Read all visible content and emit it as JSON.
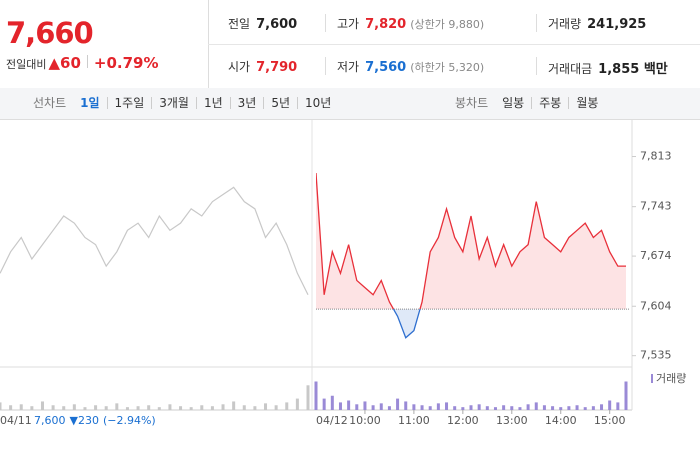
{
  "quote": {
    "price": "7,660",
    "change_label": "전일대비",
    "change": "▲60",
    "change_pct": "+0.79%"
  },
  "stats": [
    {
      "label": "전일",
      "value": "7,600",
      "color": "#222222"
    },
    {
      "label": "고가",
      "value": "7,820",
      "note": "(상한가 9,880)",
      "color": "#e3242b"
    },
    {
      "label": "거래량",
      "value": "241,925",
      "color": "#222222"
    },
    {
      "label": "시가",
      "value": "7,790",
      "color": "#e3242b"
    },
    {
      "label": "저가",
      "value": "7,560",
      "note": "(하한가 5,320)",
      "color": "#1a6fd1"
    },
    {
      "label": "거래대금",
      "value": "1,855 백만",
      "color": "#222222"
    }
  ],
  "tabs": {
    "line_label": "선차트",
    "line": [
      "1일",
      "1주일",
      "3개월",
      "1년",
      "3년",
      "5년",
      "10년"
    ],
    "selected_index": 0,
    "candle_label": "봉차트",
    "candle": [
      "일봉",
      "주봉",
      "월봉"
    ]
  },
  "chart_data": {
    "type": "line",
    "ylim": [
      7522,
      7857
    ],
    "yticks": [
      {
        "value": 7813,
        "label": "7,813"
      },
      {
        "value": 7743,
        "label": "7,743"
      },
      {
        "value": 7674,
        "label": "7,674"
      },
      {
        "value": 7604,
        "label": "7,604"
      },
      {
        "value": 7535,
        "label": "7,535"
      }
    ],
    "baseline": 7600,
    "previous_day": {
      "date": "04/11",
      "close": "7,600",
      "change": "▼230",
      "change_pct": "(−2.94%)",
      "color": "#c8c8c8",
      "values": [
        7650,
        7680,
        7700,
        7670,
        7690,
        7710,
        7730,
        7720,
        7700,
        7690,
        7660,
        7680,
        7710,
        7720,
        7700,
        7730,
        7710,
        7720,
        7740,
        7730,
        7750,
        7760,
        7770,
        7750,
        7740,
        7700,
        7720,
        7690,
        7650,
        7620
      ],
      "volume": [
        8000,
        5000,
        6000,
        4000,
        9000,
        5000,
        4000,
        6000,
        3000,
        5000,
        4000,
        7000,
        3000,
        4000,
        5000,
        3000,
        6000,
        4000,
        3000,
        5000,
        4000,
        6000,
        9000,
        5000,
        4000,
        7000,
        5000,
        8000,
        12000,
        26000
      ]
    },
    "today": {
      "date": "04/12",
      "up_color": "#e8303a",
      "down_color": "#2f6fcf",
      "up_fill": "#fde3e4",
      "down_fill": "#dfe9f8",
      "x": [
        "09:00",
        "09:10",
        "09:20",
        "09:30",
        "09:40",
        "09:50",
        "10:00",
        "10:10",
        "10:20",
        "10:30",
        "10:40",
        "10:50",
        "11:00",
        "11:10",
        "11:20",
        "11:30",
        "11:40",
        "11:50",
        "12:00",
        "12:10",
        "12:20",
        "12:30",
        "12:40",
        "12:50",
        "13:00",
        "13:10",
        "13:20",
        "13:30",
        "13:40",
        "13:50",
        "14:00",
        "14:10",
        "14:20",
        "14:30",
        "14:40",
        "14:50",
        "15:00",
        "15:10",
        "15:20"
      ],
      "values": [
        7790,
        7620,
        7680,
        7650,
        7690,
        7640,
        7630,
        7620,
        7640,
        7610,
        7590,
        7560,
        7570,
        7610,
        7680,
        7700,
        7740,
        7700,
        7680,
        7730,
        7670,
        7700,
        7660,
        7690,
        7660,
        7680,
        7690,
        7750,
        7700,
        7690,
        7680,
        7700,
        7710,
        7720,
        7700,
        7710,
        7680,
        7660,
        7660
      ],
      "volume": [
        30000,
        12000,
        15000,
        8000,
        10000,
        6000,
        9000,
        5000,
        7000,
        4000,
        12000,
        9000,
        6000,
        5000,
        4000,
        7000,
        8000,
        4000,
        3000,
        5000,
        6000,
        4000,
        3000,
        5000,
        4000,
        3000,
        6000,
        8000,
        5000,
        4000,
        3000,
        4000,
        5000,
        3000,
        4000,
        6000,
        10000,
        8000,
        30000
      ]
    },
    "xticks": [
      "10:00",
      "11:00",
      "12:00",
      "13:00",
      "14:00",
      "15:00"
    ],
    "volume_legend": {
      "name": "거래량",
      "color": "#9a8ad6"
    },
    "volume_ylim": [
      0,
      40000
    ]
  }
}
